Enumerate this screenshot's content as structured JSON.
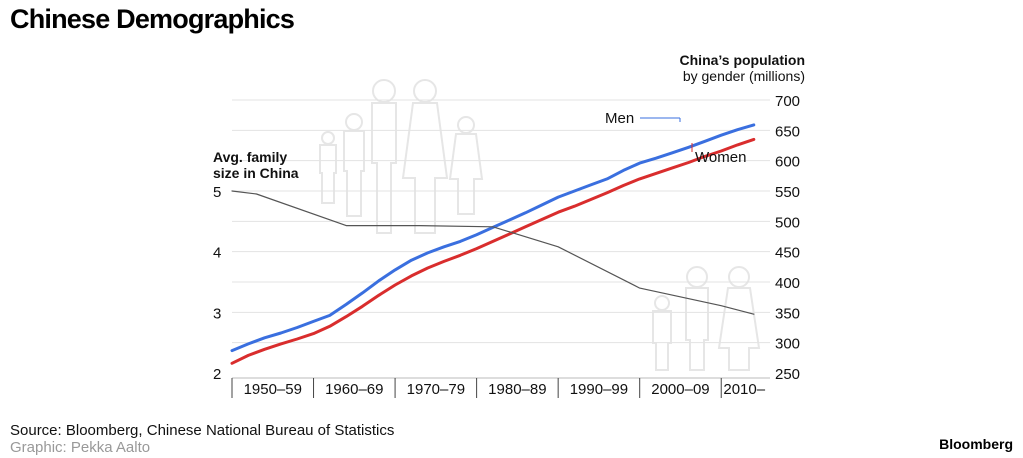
{
  "page": {
    "title": "Chinese Demographics",
    "source": "Source: Bloomberg, Chinese National Bureau of Statistics",
    "graphic": "Graphic: Pekka Aalto",
    "brand": "Bloomberg"
  },
  "chart_data": {
    "type": "line",
    "categories": [
      "1950–59",
      "1960–69",
      "1970–79",
      "1980–89",
      "1990–99",
      "2000–09",
      "2010–"
    ],
    "left_axis": {
      "label_line1": "Avg. family",
      "label_line2": "size in China",
      "ticks": [
        2,
        3,
        4,
        5
      ],
      "range": [
        2,
        5
      ]
    },
    "right_axis": {
      "label_line1": "China’s population",
      "label_line2": "by gender (millions)",
      "ticks": [
        250,
        300,
        350,
        400,
        450,
        500,
        550,
        600,
        650,
        700
      ],
      "range": [
        250,
        700
      ]
    },
    "series": [
      {
        "name": "Men",
        "axis": "right",
        "color": "#3a6fdf",
        "x": [
          1950,
          1952,
          1954,
          1956,
          1958,
          1960,
          1962,
          1964,
          1966,
          1968,
          1970,
          1972,
          1974,
          1976,
          1978,
          1980,
          1982,
          1984,
          1986,
          1988,
          1990,
          1992,
          1994,
          1996,
          1998,
          2000,
          2002,
          2004,
          2006,
          2008,
          2010,
          2012,
          2014
        ],
        "values": [
          287,
          298,
          308,
          316,
          325,
          335,
          345,
          363,
          382,
          402,
          420,
          436,
          448,
          458,
          467,
          478,
          490,
          502,
          514,
          527,
          540,
          550,
          560,
          570,
          584,
          596,
          604,
          613,
          622,
          632,
          642,
          651,
          659
        ]
      },
      {
        "name": "Women",
        "axis": "right",
        "color": "#d92d2d",
        "x": [
          1950,
          1952,
          1954,
          1956,
          1958,
          1960,
          1962,
          1964,
          1966,
          1968,
          1970,
          1972,
          1974,
          1976,
          1978,
          1980,
          1982,
          1984,
          1986,
          1988,
          1990,
          1992,
          1994,
          1996,
          1998,
          2000,
          2002,
          2004,
          2006,
          2008,
          2010,
          2012,
          2014
        ],
        "values": [
          266,
          279,
          289,
          298,
          306,
          315,
          327,
          343,
          360,
          378,
          395,
          410,
          423,
          434,
          444,
          455,
          467,
          479,
          491,
          503,
          515,
          525,
          536,
          547,
          559,
          570,
          579,
          588,
          597,
          607,
          616,
          626,
          635
        ]
      },
      {
        "name": "Avg. family size",
        "axis": "left",
        "color": "#555555",
        "x": [
          1950,
          1953,
          1964,
          1973,
          1982,
          1990,
          2000,
          2010,
          2014
        ],
        "values": [
          5.0,
          4.95,
          4.43,
          4.43,
          4.41,
          4.08,
          3.4,
          3.11,
          2.97
        ]
      }
    ],
    "legend": [
      {
        "text": "Men",
        "series": "Men"
      },
      {
        "text": "Women",
        "series": "Women"
      }
    ]
  }
}
